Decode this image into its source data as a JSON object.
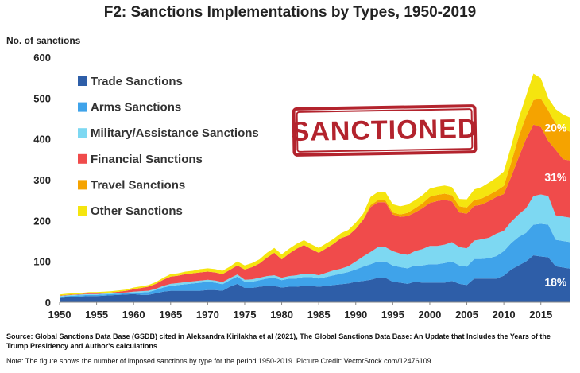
{
  "title": "F2: Sanctions Implementations by Types, 1950-2019",
  "ylabel": "No. of sanctions",
  "stamp_text": "SANCTIONED",
  "source": "Source: Global Sanctions Data Base (GSDB) cited in Aleksandra Kirilakha et al (2021), The Global Sanctions Data Base: An Update that Includes the Years of the Trump Presidency and Author's calculations",
  "note": "Note: The figure shows the number of imposed sanctions by type for the period 1950-2019.     Picture Credit: VectorStock.com/12476109",
  "chart_data": {
    "type": "area",
    "stacked": true,
    "xlim": [
      1950,
      2019
    ],
    "ylim": [
      0,
      600
    ],
    "yticks": [
      0,
      100,
      200,
      300,
      400,
      500,
      600
    ],
    "xticks": [
      1950,
      1955,
      1960,
      1965,
      1970,
      1975,
      1980,
      1985,
      1990,
      1995,
      2000,
      2005,
      2010,
      2015
    ],
    "grid": false,
    "legend_position": "top-left",
    "x": [
      1950,
      1951,
      1952,
      1953,
      1954,
      1955,
      1956,
      1957,
      1958,
      1959,
      1960,
      1961,
      1962,
      1963,
      1964,
      1965,
      1966,
      1967,
      1968,
      1969,
      1970,
      1971,
      1972,
      1973,
      1974,
      1975,
      1976,
      1977,
      1978,
      1979,
      1980,
      1981,
      1982,
      1983,
      1984,
      1985,
      1986,
      1987,
      1988,
      1989,
      1990,
      1991,
      1992,
      1993,
      1994,
      1995,
      1996,
      1997,
      1998,
      1999,
      2000,
      2001,
      2002,
      2003,
      2004,
      2005,
      2006,
      2007,
      2008,
      2009,
      2010,
      2011,
      2012,
      2013,
      2014,
      2015,
      2016,
      2017,
      2018,
      2019
    ],
    "series": [
      {
        "name": "Trade Sanctions",
        "color": "#2e5ea8",
        "values": [
          10,
          12,
          13,
          14,
          15,
          15,
          16,
          17,
          18,
          19,
          20,
          18,
          18,
          22,
          26,
          28,
          28,
          28,
          28,
          28,
          30,
          30,
          28,
          38,
          45,
          35,
          35,
          38,
          40,
          40,
          36,
          38,
          38,
          40,
          40,
          38,
          40,
          42,
          44,
          46,
          50,
          52,
          55,
          60,
          60,
          50,
          48,
          45,
          50,
          48,
          48,
          48,
          48,
          52,
          45,
          42,
          58,
          58,
          58,
          58,
          65,
          80,
          90,
          100,
          115,
          112,
          110,
          88,
          85,
          82
        ]
      },
      {
        "name": "Arms Sanctions",
        "color": "#3fa3ea",
        "values": [
          3,
          3,
          3,
          3,
          3,
          3,
          3,
          3,
          3,
          3,
          4,
          6,
          7,
          8,
          10,
          12,
          14,
          16,
          18,
          20,
          20,
          18,
          16,
          16,
          18,
          15,
          15,
          16,
          18,
          20,
          18,
          20,
          20,
          22,
          22,
          20,
          22,
          24,
          26,
          28,
          30,
          35,
          38,
          40,
          40,
          40,
          38,
          38,
          40,
          42,
          45,
          45,
          48,
          48,
          45,
          45,
          48,
          48,
          50,
          55,
          60,
          65,
          70,
          70,
          75,
          80,
          80,
          65,
          65,
          65
        ]
      },
      {
        "name": "Military/Assistance Sanctions",
        "color": "#7dd8f2",
        "values": [
          2,
          2,
          2,
          2,
          2,
          2,
          2,
          2,
          2,
          2,
          2,
          3,
          3,
          3,
          4,
          5,
          5,
          5,
          5,
          5,
          5,
          5,
          5,
          5,
          5,
          5,
          6,
          6,
          6,
          6,
          6,
          6,
          8,
          8,
          8,
          8,
          10,
          12,
          12,
          14,
          20,
          25,
          30,
          35,
          35,
          35,
          33,
          33,
          35,
          40,
          45,
          45,
          45,
          47,
          45,
          45,
          45,
          48,
          50,
          55,
          50,
          52,
          55,
          60,
          70,
          72,
          70,
          60,
          60,
          60
        ]
      },
      {
        "name": "Financial Sanctions",
        "color": "#f04b4b",
        "values": [
          1,
          1,
          1,
          1,
          2,
          2,
          2,
          2,
          3,
          4,
          6,
          8,
          10,
          12,
          15,
          18,
          18,
          20,
          20,
          20,
          20,
          20,
          20,
          20,
          22,
          25,
          30,
          35,
          45,
          55,
          45,
          55,
          65,
          70,
          60,
          55,
          60,
          65,
          75,
          75,
          80,
          90,
          110,
          110,
          110,
          90,
          90,
          95,
          95,
          100,
          105,
          110,
          110,
          100,
          85,
          85,
          85,
          85,
          90,
          90,
          90,
          110,
          140,
          170,
          175,
          165,
          135,
          160,
          140,
          140
        ]
      },
      {
        "name": "Travel Sanctions",
        "color": "#f5a300",
        "values": [
          0,
          0,
          0,
          0,
          0,
          0,
          0,
          0,
          0,
          0,
          0,
          0,
          0,
          0,
          0,
          0,
          0,
          0,
          0,
          0,
          0,
          0,
          0,
          0,
          0,
          0,
          0,
          0,
          0,
          0,
          0,
          0,
          0,
          0,
          0,
          0,
          0,
          0,
          0,
          0,
          0,
          0,
          5,
          5,
          5,
          5,
          6,
          8,
          10,
          12,
          15,
          15,
          15,
          15,
          15,
          15,
          15,
          15,
          15,
          15,
          20,
          35,
          50,
          55,
          60,
          70,
          75,
          65,
          75,
          70
        ]
      },
      {
        "name": "Other Sanctions",
        "color": "#f5e50f",
        "values": [
          3,
          3,
          3,
          3,
          3,
          3,
          3,
          3,
          3,
          3,
          4,
          4,
          4,
          4,
          5,
          6,
          6,
          6,
          6,
          8,
          8,
          8,
          8,
          8,
          10,
          10,
          10,
          10,
          12,
          12,
          12,
          12,
          12,
          12,
          12,
          12,
          12,
          12,
          12,
          14,
          15,
          15,
          20,
          20,
          20,
          20,
          20,
          20,
          20,
          20,
          20,
          20,
          20,
          20,
          18,
          20,
          25,
          28,
          30,
          32,
          35,
          40,
          45,
          50,
          65,
          50,
          30,
          35,
          35,
          35
        ]
      }
    ],
    "annotations": [
      {
        "text": "20%",
        "x": 2017,
        "y": 418
      },
      {
        "text": "31%",
        "x": 2017,
        "y": 297
      },
      {
        "text": "18%",
        "x": 2017,
        "y": 40
      }
    ]
  }
}
